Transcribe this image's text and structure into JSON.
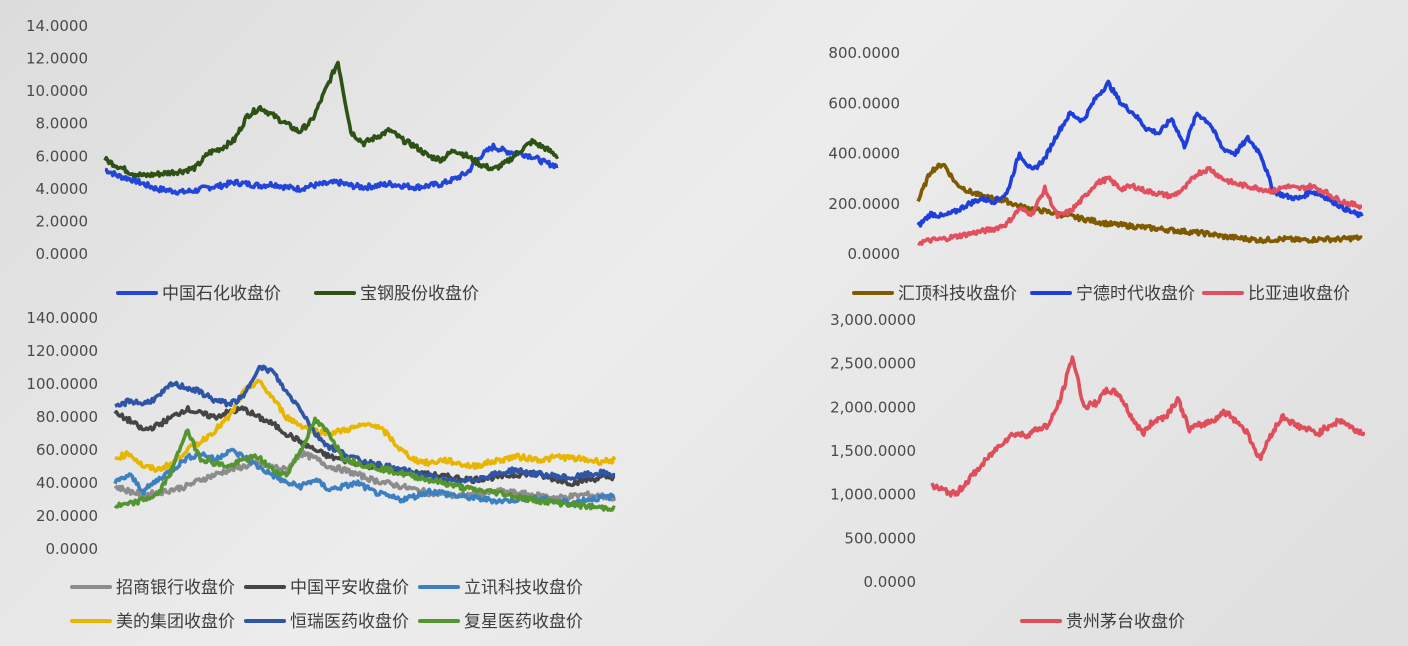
{
  "chart_data": [
    {
      "type": "line",
      "title": "",
      "xlabel": "",
      "ylabel": "",
      "ylim": [
        0,
        14
      ],
      "yticks": [
        "0.0000",
        "2.0000",
        "4.0000",
        "6.0000",
        "8.0000",
        "10.0000",
        "12.0000",
        "14.0000"
      ],
      "grid": false,
      "legend_position": "bottom",
      "series": [
        {
          "name": "中国石化收盘价",
          "color": "#2446d8",
          "values": [
            5.2,
            4.8,
            4.6,
            4.3,
            4.0,
            3.9,
            3.8,
            3.9,
            4.1,
            4.2,
            4.4,
            4.3,
            4.2,
            4.3,
            4.1,
            4.0,
            4.2,
            4.3,
            4.4,
            4.2,
            4.1,
            4.2,
            4.3,
            4.2,
            4.1,
            4.2,
            4.3,
            4.6,
            5.0,
            6.0,
            6.6,
            6.3,
            6.2,
            6.0,
            5.6,
            5.4
          ]
        },
        {
          "name": "宝钢股份收盘价",
          "color": "#2e5216",
          "values": [
            5.8,
            5.4,
            5.0,
            4.8,
            4.9,
            5.0,
            5.1,
            5.3,
            6.2,
            6.5,
            7.0,
            8.5,
            9.0,
            8.5,
            8.0,
            7.5,
            8.2,
            10.0,
            11.8,
            7.5,
            6.8,
            7.2,
            7.6,
            7.0,
            6.6,
            6.0,
            5.8,
            6.4,
            6.0,
            5.5,
            5.2,
            5.6,
            6.3,
            6.9,
            6.5,
            6.0
          ]
        }
      ]
    },
    {
      "type": "line",
      "title": "",
      "xlabel": "",
      "ylabel": "",
      "ylim": [
        0,
        800
      ],
      "yticks": [
        "0.0000",
        "200.0000",
        "400.0000",
        "600.0000",
        "800.0000"
      ],
      "grid": false,
      "legend_position": "bottom",
      "series": [
        {
          "name": "汇顶科技收盘价",
          "color": "#7f5a00",
          "values": [
            210,
            330,
            360,
            280,
            250,
            230,
            220,
            210,
            190,
            180,
            170,
            160,
            150,
            140,
            130,
            120,
            115,
            110,
            105,
            100,
            95,
            90,
            85,
            80,
            70,
            65,
            60,
            55,
            58,
            60,
            55,
            57,
            60,
            58,
            62,
            65
          ]
        },
        {
          "name": "宁德时代收盘价",
          "color": "#1f3fdc",
          "values": [
            110,
            160,
            150,
            170,
            200,
            220,
            210,
            240,
            400,
            330,
            380,
            480,
            560,
            530,
            620,
            680,
            600,
            560,
            500,
            480,
            540,
            430,
            560,
            520,
            420,
            400,
            460,
            400,
            250,
            230,
            220,
            250,
            230,
            200,
            170,
            150
          ]
        },
        {
          "name": "比亚迪收盘价",
          "color": "#e2505f",
          "values": [
            45,
            55,
            60,
            70,
            80,
            90,
            100,
            120,
            180,
            160,
            260,
            150,
            170,
            220,
            280,
            300,
            260,
            270,
            250,
            240,
            230,
            260,
            320,
            340,
            300,
            280,
            270,
            260,
            250,
            270,
            260,
            270,
            250,
            220,
            200,
            190
          ]
        }
      ]
    },
    {
      "type": "line",
      "title": "",
      "xlabel": "",
      "ylabel": "",
      "ylim": [
        0,
        140
      ],
      "yticks": [
        "0.0000",
        "20.0000",
        "40.0000",
        "60.0000",
        "80.0000",
        "100.0000",
        "120.0000",
        "140.0000"
      ],
      "grid": false,
      "legend_position": "bottom",
      "series": [
        {
          "name": "招商银行收盘价",
          "color": "#8c8c8c",
          "values": [
            38,
            35,
            33,
            34,
            36,
            38,
            42,
            45,
            48,
            50,
            52,
            50,
            48,
            58,
            55,
            50,
            48,
            45,
            42,
            40,
            38,
            36,
            34,
            33,
            32,
            33,
            34,
            35,
            34,
            33,
            32,
            31,
            32,
            33,
            32,
            31
          ]
        },
        {
          "name": "中国平安收盘价",
          "color": "#454545",
          "values": [
            82,
            78,
            72,
            75,
            80,
            85,
            82,
            80,
            83,
            85,
            80,
            76,
            70,
            65,
            60,
            56,
            54,
            52,
            50,
            48,
            47,
            46,
            45,
            44,
            43,
            42,
            43,
            44,
            45,
            46,
            44,
            42,
            40,
            42,
            43,
            44
          ]
        },
        {
          "name": "立讯科技收盘价",
          "color": "#3d80c2",
          "values": [
            40,
            45,
            35,
            42,
            48,
            55,
            58,
            54,
            60,
            56,
            50,
            45,
            40,
            38,
            42,
            36,
            38,
            40,
            35,
            32,
            30,
            32,
            35,
            34,
            32,
            31,
            30,
            29,
            30,
            31,
            30,
            29,
            28,
            30,
            31,
            32
          ]
        },
        {
          "name": "美的集团收盘价",
          "color": "#e8b600",
          "values": [
            55,
            58,
            50,
            48,
            52,
            60,
            65,
            72,
            80,
            95,
            102,
            92,
            80,
            75,
            72,
            70,
            72,
            74,
            76,
            70,
            60,
            54,
            52,
            54,
            52,
            50,
            52,
            54,
            56,
            55,
            54,
            56,
            55,
            54,
            53,
            54
          ]
        },
        {
          "name": "恒瑞医药收盘价",
          "color": "#2f55a8",
          "values": [
            85,
            90,
            88,
            92,
            100,
            98,
            95,
            90,
            88,
            92,
            110,
            108,
            95,
            85,
            70,
            62,
            58,
            54,
            52,
            50,
            48,
            46,
            44,
            42,
            40,
            42,
            44,
            46,
            48,
            46,
            45,
            44,
            43,
            45,
            46,
            45
          ]
        },
        {
          "name": "复星医药收盘价",
          "color": "#54952f",
          "values": [
            26,
            27,
            30,
            33,
            48,
            72,
            55,
            52,
            50,
            54,
            56,
            48,
            45,
            60,
            78,
            70,
            55,
            52,
            50,
            48,
            46,
            44,
            42,
            40,
            38,
            36,
            35,
            34,
            32,
            30,
            29,
            28,
            27,
            26,
            25,
            25
          ]
        }
      ]
    },
    {
      "type": "line",
      "title": "",
      "xlabel": "",
      "ylabel": "",
      "ylim": [
        0,
        3000
      ],
      "yticks": [
        "0.0000",
        "500.0000",
        "1,000.0000",
        "1,500.0000",
        "2,000.0000",
        "2,500.0000",
        "3,000.0000"
      ],
      "grid": false,
      "legend_position": "bottom",
      "series": [
        {
          "name": "贵州茅台收盘价",
          "color": "#de4f5b",
          "values": [
            1100,
            1050,
            1000,
            1150,
            1300,
            1450,
            1600,
            1700,
            1680,
            1750,
            1800,
            2100,
            2580,
            2000,
            2050,
            2200,
            2150,
            1900,
            1700,
            1850,
            1900,
            2100,
            1750,
            1800,
            1850,
            1950,
            1850,
            1700,
            1400,
            1700,
            1900,
            1800,
            1750,
            1700,
            1800,
            1850,
            1750,
            1700
          ]
        }
      ]
    }
  ]
}
